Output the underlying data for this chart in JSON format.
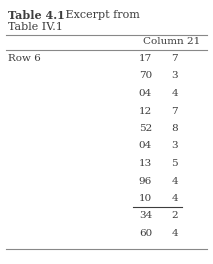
{
  "title_bold": "Table 4.1",
  "title_rest": "   Excerpt from\nTable IV.1",
  "col_header": "Column 21",
  "row_label": "Row 6",
  "rows": [
    [
      "17",
      "7"
    ],
    [
      "70",
      "3"
    ],
    [
      "04",
      "4"
    ],
    [
      "12",
      "7"
    ],
    [
      "52",
      "8"
    ],
    [
      "04",
      "3"
    ],
    [
      "13",
      "5"
    ],
    [
      "96",
      "4"
    ],
    [
      "10",
      "4"
    ],
    [
      "34",
      "2"
    ],
    [
      "60",
      "4"
    ]
  ],
  "underline_row": 8,
  "bg_color": "#ffffff",
  "text_color": "#3d3d3d",
  "line_color": "#888888",
  "font_size": 7.5,
  "title_font_size": 8.0
}
